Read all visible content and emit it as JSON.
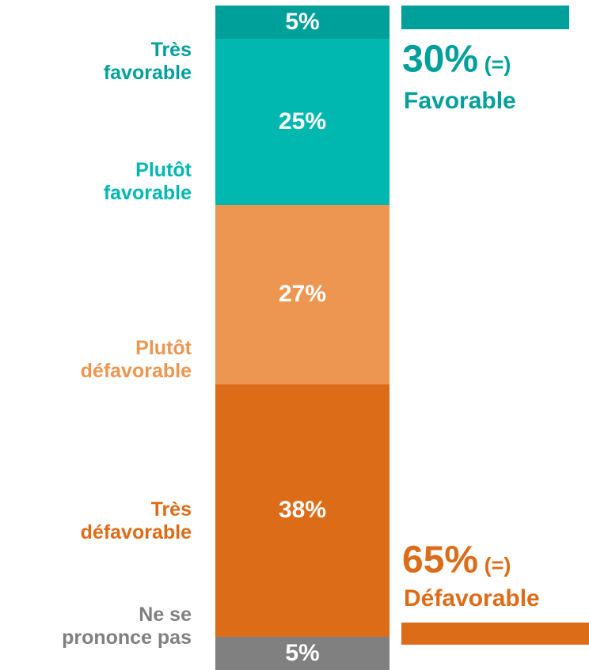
{
  "chart_data": {
    "type": "stacked-bar",
    "categories": [
      null
    ],
    "series": [
      {
        "name": "Très\nfavorable",
        "color": "#00a09a",
        "values": [
          5
        ],
        "value_labels": [
          "5%"
        ]
      },
      {
        "name": "Plutôt\nfavorable",
        "color": "#00b8b0",
        "values": [
          25
        ],
        "value_labels": [
          "25%"
        ]
      },
      {
        "name": "Plutôt\ndéfavorable",
        "color": "#ed9651",
        "values": [
          27
        ],
        "value_labels": [
          "27%"
        ]
      },
      {
        "name": "Très\ndéfavorable",
        "color": "#dd6c18",
        "values": [
          38
        ],
        "value_labels": [
          "38%"
        ]
      },
      {
        "name": "Ne se\nprononce pas",
        "color": "#808080",
        "values": [
          5
        ],
        "value_labels": [
          "5%"
        ]
      }
    ],
    "ylim": [
      100,
      0
    ],
    "annotations": [
      {
        "value": 30,
        "value_label": "30%",
        "note": "(=)",
        "label": "Favorable",
        "color": "#00a09a"
      },
      {
        "value": 65,
        "value_label": "65%",
        "note": "(=)",
        "label": "Défavorable",
        "color": "#dd6c18"
      }
    ]
  }
}
